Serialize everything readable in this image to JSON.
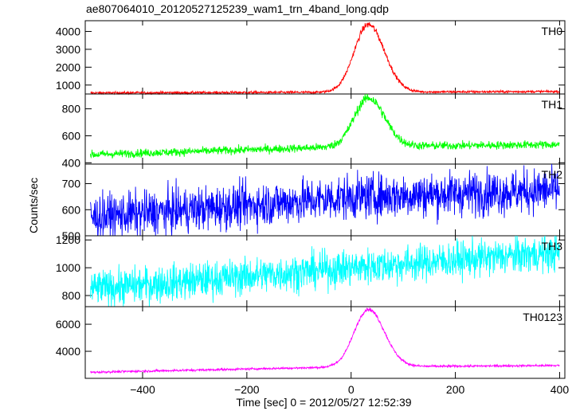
{
  "title": "ae807064010_20120527125239_wam1_trn_4band_long.qdp",
  "xlabel": "Time [sec] 0 = 2012/05/27 12:52:39",
  "ylabel": "Counts/sec",
  "chart_data": [
    {
      "type": "line",
      "name": "TH0",
      "color": "#ff0000",
      "xlim": [
        -510,
        410
      ],
      "ylim": [
        500,
        4600
      ],
      "yticks": [
        1000,
        2000,
        3000,
        4000
      ],
      "base": [
        [
          -500,
          560
        ],
        [
          0,
          600
        ],
        [
          400,
          640
        ]
      ],
      "peak": {
        "center": 33,
        "amp": 3780,
        "width": 27
      },
      "noise": 70
    },
    {
      "type": "line",
      "name": "TH1",
      "color": "#00ff00",
      "xlim": [
        -510,
        410
      ],
      "ylim": [
        390,
        910
      ],
      "yticks": [
        400,
        600,
        800
      ],
      "base": [
        [
          -500,
          460
        ],
        [
          0,
          520
        ],
        [
          400,
          535
        ]
      ],
      "peak": {
        "center": 33,
        "amp": 360,
        "width": 27
      },
      "noise": 30
    },
    {
      "type": "line",
      "name": "TH2",
      "color": "#0000ff",
      "xlim": [
        -510,
        410
      ],
      "ylim": [
        500,
        775
      ],
      "yticks": [
        500,
        600,
        700
      ],
      "base": [
        [
          -500,
          570
        ],
        [
          0,
          648
        ],
        [
          400,
          675
        ]
      ],
      "peak": null,
      "noise": 42
    },
    {
      "type": "line",
      "name": "TH3",
      "color": "#00ffff",
      "xlim": [
        -510,
        410
      ],
      "ylim": [
        720,
        1230
      ],
      "yticks": [
        800,
        1000,
        1200
      ],
      "base": [
        [
          -500,
          845
        ],
        [
          0,
          1000
        ],
        [
          400,
          1110
        ]
      ],
      "peak": null,
      "noise": 65
    },
    {
      "type": "line",
      "name": "TH0123",
      "color": "#ff00ff",
      "xlim": [
        -510,
        410
      ],
      "ylim": [
        2000,
        7300
      ],
      "yticks": [
        4000,
        6000
      ],
      "base": [
        [
          -500,
          2450
        ],
        [
          0,
          2850
        ],
        [
          400,
          2950
        ]
      ],
      "peak": {
        "center": 33,
        "amp": 4250,
        "width": 27
      },
      "noise": 80
    }
  ],
  "xaxis": {
    "ticks": [
      -400,
      -200,
      0,
      200,
      400
    ],
    "tick_labels": [
      "−400",
      "−200",
      "0",
      "200",
      "400"
    ]
  }
}
